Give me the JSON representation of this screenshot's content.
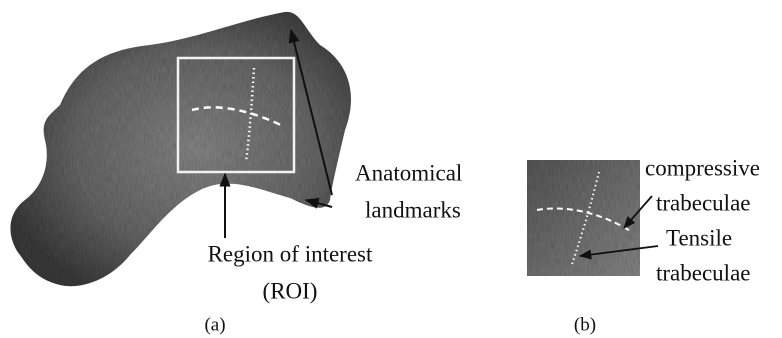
{
  "panel_a": {
    "label": "(a)",
    "landmarks_label": [
      "Anatomical",
      "landmarks"
    ],
    "roi_label": [
      "Region of interest",
      "(ROI)"
    ]
  },
  "panel_b": {
    "label": "(b)",
    "compressive_label": [
      "compressive",
      "trabeculae"
    ],
    "tensile_label": [
      "Tensile",
      "trabeculae"
    ]
  }
}
